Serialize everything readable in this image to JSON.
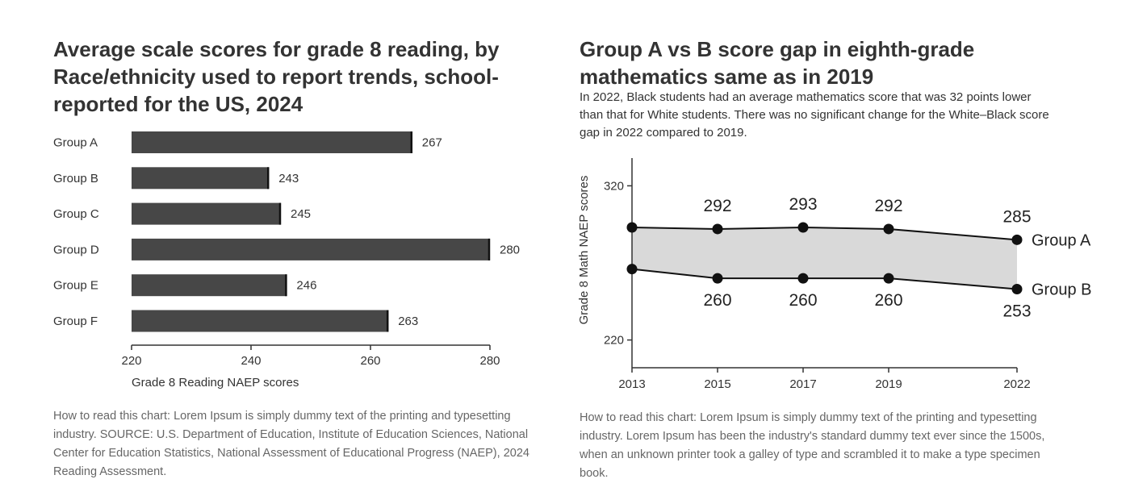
{
  "left": {
    "title": "Average scale scores for grade 8 reading, by Race/ethnicity used to report trends, school-reported for the US, 2024",
    "footnote": "How to read this chart: Lorem Ipsum is simply dummy text of the printing and typesetting industry. SOURCE: U.S. Department of Education, Institute of Education Sciences, National Center for Education Statistics, National Assessment of Educational Progress (NAEP), 2024 Reading Assessment."
  },
  "right": {
    "title": "Group A vs B score gap in eighth-grade mathematics same as in 2019",
    "subtitle": "In 2022, Black students had an average mathematics score that was 32 points lower than that for White students. There was no significant change for the White–Black score gap in 2022 compared to 2019.",
    "footnote": "How to read this chart: Lorem Ipsum is simply dummy text of the printing and typesetting industry. Lorem Ipsum has been the industry's standard dummy text ever since the 1500s, when an unknown printer took a galley of type and scrambled it to make a type specimen book."
  },
  "colors": {
    "bar": "#474747",
    "bar_end": "#111111",
    "band": "#d9d9d9",
    "line": "#111111",
    "axis": "#333333"
  },
  "chart_data": [
    {
      "type": "bar",
      "orientation": "horizontal",
      "title": "Average scale scores for grade 8 reading, by Race/ethnicity used to report trends, school-reported for the US, 2024",
      "categories": [
        "Group A",
        "Group B",
        "Group C",
        "Group D",
        "Group E",
        "Group F"
      ],
      "values": [
        267,
        243,
        245,
        280,
        246,
        263
      ],
      "xlabel": "Grade 8 Reading NAEP scores",
      "ylabel": "",
      "xlim": [
        220,
        280
      ],
      "xticks": [
        220,
        240,
        260,
        280
      ],
      "grid": false,
      "legend": "none"
    },
    {
      "type": "line",
      "title": "Group A vs B score gap in eighth-grade mathematics same as in 2019",
      "x": [
        "2013",
        "2015",
        "2017",
        "2019",
        "2022"
      ],
      "series": [
        {
          "name": "Group A",
          "values": [
            293,
            292,
            293,
            292,
            285
          ],
          "labels": [
            "",
            "292",
            "293",
            "292",
            "285"
          ]
        },
        {
          "name": "Group B",
          "values": [
            266,
            260,
            260,
            260,
            253
          ],
          "labels": [
            "",
            "260",
            "260",
            "260",
            "253"
          ]
        }
      ],
      "xlabel": "",
      "ylabel": "Grade 8 Math NAEP scores",
      "ylim": [
        202,
        338
      ],
      "yticks": [
        220,
        320
      ],
      "fill_between": true,
      "grid": false,
      "legend": "inline-right"
    }
  ]
}
